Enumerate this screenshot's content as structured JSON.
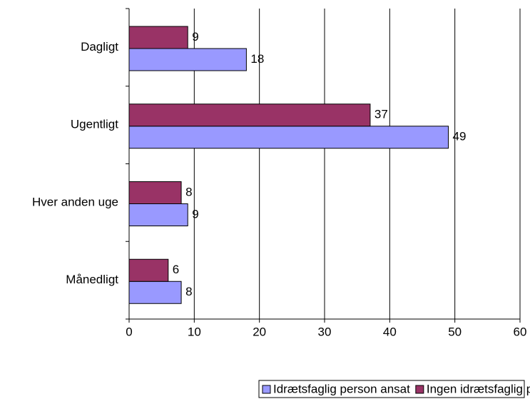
{
  "chart_data": {
    "type": "barh",
    "categories": [
      "Dagligt",
      "Ugentligt",
      "Hver anden uge",
      "Månedligt"
    ],
    "series": [
      {
        "name": "Idrætsfaglig person ansat",
        "color": "#9999ff",
        "values": [
          18,
          49,
          9,
          8
        ]
      },
      {
        "name": "Ingen idrætsfaglig person ansat",
        "color": "#993366",
        "values": [
          9,
          37,
          8,
          6
        ]
      }
    ],
    "xlim": [
      0,
      60
    ],
    "xticks": [
      0,
      10,
      20,
      30,
      40,
      50,
      60
    ],
    "grid": true,
    "legend": "bottom"
  }
}
